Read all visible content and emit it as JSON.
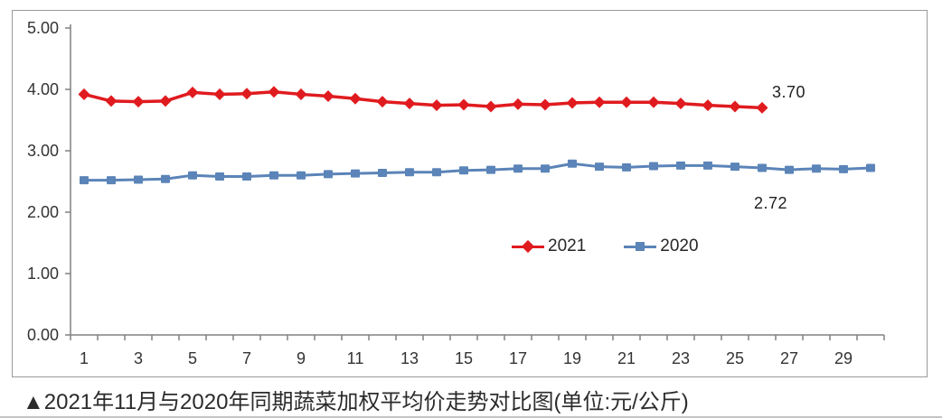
{
  "caption": "▲2021年11月与2020年同期蔬菜加权平均价走势对比图(单位:元/公斤)",
  "colors": {
    "series_2021": "#e01b1f",
    "series_2020": "#5b84b8",
    "axis": "#808080",
    "tick_text": "#333333"
  },
  "legend": {
    "items": [
      {
        "label": "2021"
      },
      {
        "label": "2020"
      }
    ]
  },
  "annotations": {
    "label_2021": "3.70",
    "label_2020": "2.72"
  },
  "chart_data": {
    "type": "line",
    "title": "2021年11月与2020年同期蔬菜加权平均价走势对比图",
    "unit": "元/公斤",
    "xlabel": "",
    "ylabel": "",
    "ylim": [
      0,
      5
    ],
    "y_tick_labels": [
      "5.00",
      "4.00",
      "3.00",
      "2.00",
      "1.00",
      "0.00"
    ],
    "y_tick_values": [
      5,
      4,
      3,
      2,
      1,
      0
    ],
    "x": [
      1,
      2,
      3,
      4,
      5,
      6,
      7,
      8,
      9,
      10,
      11,
      12,
      13,
      14,
      15,
      16,
      17,
      18,
      19,
      20,
      21,
      22,
      23,
      24,
      25,
      26,
      27,
      28,
      29,
      30
    ],
    "x_tick_labels": [
      "1",
      "3",
      "5",
      "7",
      "9",
      "11",
      "13",
      "15",
      "17",
      "19",
      "21",
      "23",
      "25",
      "27",
      "29"
    ],
    "grid": false,
    "legend_position": "inside-bottom-center",
    "series": [
      {
        "name": "2021",
        "color": "#e01b1f",
        "marker": "diamond",
        "end_label": "3.70",
        "values": [
          3.92,
          3.81,
          3.8,
          3.81,
          3.95,
          3.92,
          3.93,
          3.96,
          3.92,
          3.89,
          3.85,
          3.8,
          3.77,
          3.74,
          3.75,
          3.72,
          3.76,
          3.75,
          3.78,
          3.79,
          3.79,
          3.79,
          3.77,
          3.74,
          3.72,
          3.7
        ]
      },
      {
        "name": "2020",
        "color": "#5b84b8",
        "marker": "square",
        "end_label": "2.72",
        "values": [
          2.52,
          2.52,
          2.53,
          2.54,
          2.6,
          2.58,
          2.58,
          2.6,
          2.6,
          2.62,
          2.63,
          2.64,
          2.65,
          2.65,
          2.68,
          2.69,
          2.71,
          2.71,
          2.79,
          2.74,
          2.73,
          2.75,
          2.76,
          2.76,
          2.74,
          2.72,
          2.69,
          2.71,
          2.7,
          2.72
        ]
      }
    ]
  }
}
